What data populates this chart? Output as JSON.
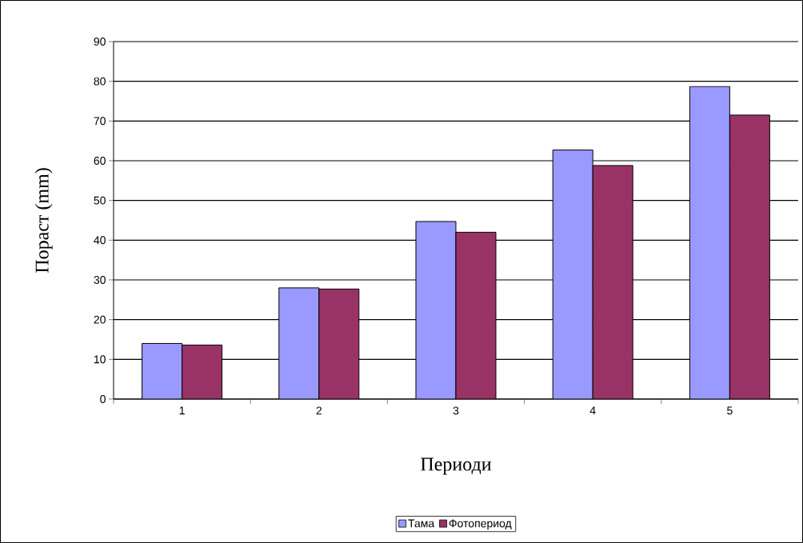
{
  "chart_data": {
    "type": "bar",
    "xlabel": "Периоди",
    "ylabel": "Пораст (mm)",
    "categories": [
      "1",
      "2",
      "3",
      "4",
      "5"
    ],
    "series": [
      {
        "name": "Тама",
        "color": "#9999ff",
        "values": [
          14,
          28,
          44.7,
          62.7,
          78.7
        ]
      },
      {
        "name": "Фотопериод",
        "color": "#993366",
        "values": [
          13.6,
          27.7,
          42,
          58.8,
          71.5
        ]
      }
    ],
    "ylim": [
      0,
      90
    ],
    "yticks": [
      0,
      10,
      20,
      30,
      40,
      50,
      60,
      70,
      80,
      90
    ],
    "grid": "y",
    "legend": "bottom"
  }
}
